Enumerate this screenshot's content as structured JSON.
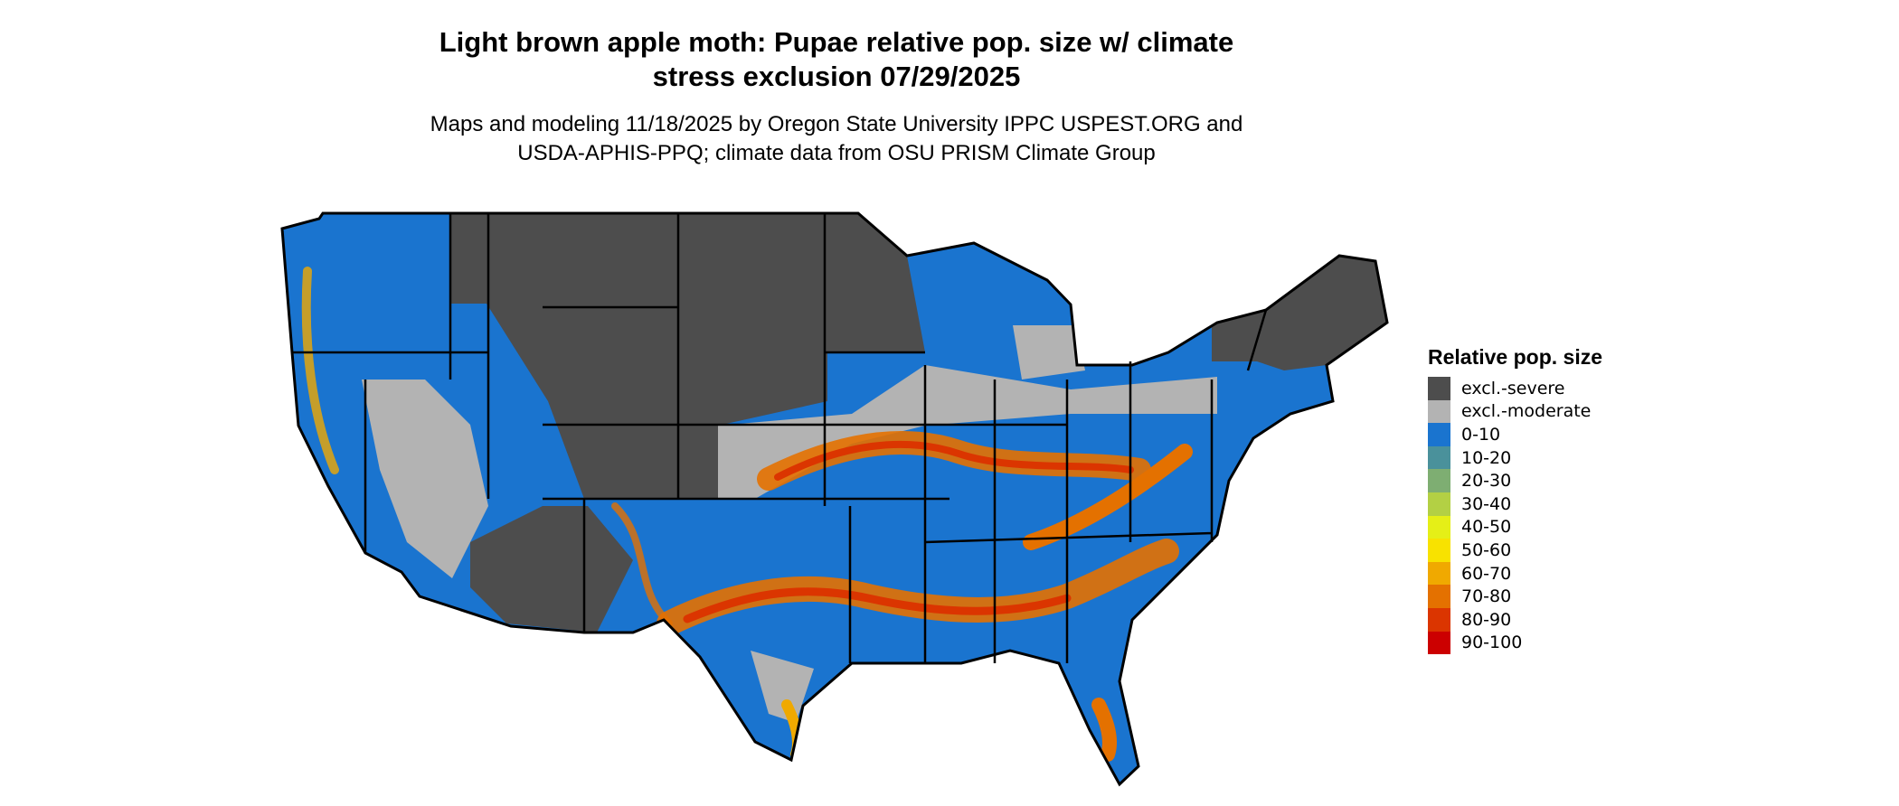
{
  "title_line1": "Light brown apple moth: Pupae relative pop. size w/ climate",
  "title_line2": "stress exclusion 07/29/2025",
  "subtitle_line1": "Maps and modeling 11/18/2025 by Oregon State University IPPC USPEST.ORG and",
  "subtitle_line2": "USDA-APHIS-PPQ; climate data from OSU PRISM Climate Group",
  "legend": {
    "title": "Relative pop. size",
    "items": [
      {
        "label": "excl.-severe",
        "color": "#4d4d4d"
      },
      {
        "label": "excl.-moderate",
        "color": "#b3b3b3"
      },
      {
        "label": "0-10",
        "color": "#1a74cf"
      },
      {
        "label": "10-20",
        "color": "#4a919b"
      },
      {
        "label": "20-30",
        "color": "#7eae72"
      },
      {
        "label": "30-40",
        "color": "#b3d044"
      },
      {
        "label": "40-50",
        "color": "#e5ef17"
      },
      {
        "label": "50-60",
        "color": "#f8e200"
      },
      {
        "label": "60-70",
        "color": "#f0a900"
      },
      {
        "label": "70-80",
        "color": "#e47100"
      },
      {
        "label": "80-90",
        "color": "#db3500"
      },
      {
        "label": "90-100",
        "color": "#cc0000"
      }
    ]
  }
}
